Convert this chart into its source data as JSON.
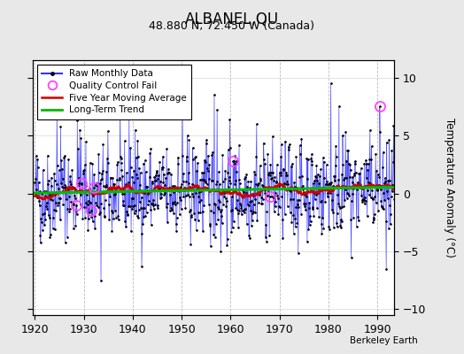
{
  "title": "ALBANEL,QU",
  "subtitle": "48.880 N, 72.450 W (Canada)",
  "ylabel": "Temperature Anomaly (°C)",
  "xlabel_note": "Berkeley Earth",
  "xlim": [
    1919.5,
    1993.5
  ],
  "ylim": [
    -10.5,
    11.5
  ],
  "yticks": [
    -10,
    -5,
    0,
    5,
    10
  ],
  "xticks": [
    1920,
    1930,
    1940,
    1950,
    1960,
    1970,
    1980,
    1990
  ],
  "bg_color": "#e8e8e8",
  "plot_bg_color": "#ffffff",
  "line_color": "#3333ff",
  "ma_color": "#cc0000",
  "trend_color": "#00bb00",
  "qc_color": "#ff44ff",
  "seed": 42,
  "start_year": 1920,
  "end_year": 1993,
  "months_per_year": 12,
  "noise_std": 2.0,
  "ma_window": 60,
  "qc_fail_times": [
    1928.5,
    1929.5,
    1931.5,
    1932.0,
    1960.5,
    1968.0,
    1990.5
  ]
}
